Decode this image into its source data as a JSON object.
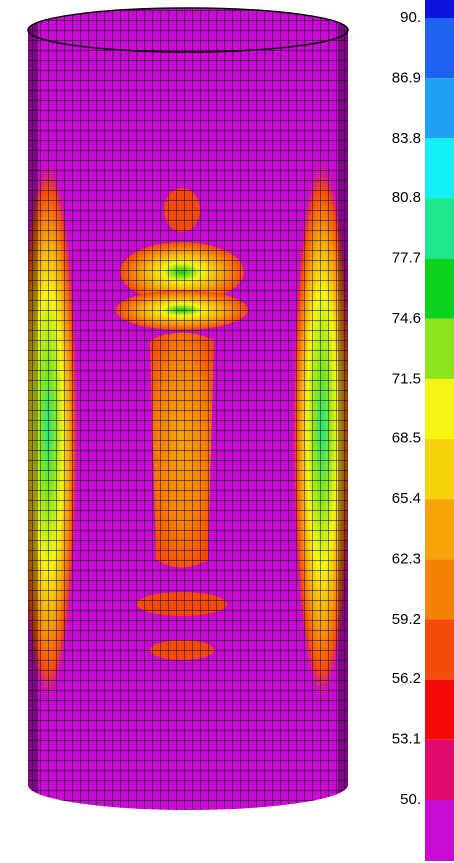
{
  "legend": {
    "ticks": [
      {
        "value": 90,
        "label": "90."
      },
      86.9,
      83.8,
      80.8,
      77.7,
      74.6,
      71.5,
      68.5,
      65.4,
      62.3,
      59.2,
      56.2,
      53.1,
      {
        "value": 50,
        "label": "50."
      }
    ],
    "colors": [
      "#0a14dc",
      "#1e64f0",
      "#1ea0f5",
      "#14f0f5",
      "#1ee68c",
      "#0ad21e",
      "#8ce61e",
      "#f5f514",
      "#f5d20a",
      "#f5a50a",
      "#f58205",
      "#f54b0a",
      "#f50a0a",
      "#e10a6e",
      "#c80ad2"
    ]
  }
}
